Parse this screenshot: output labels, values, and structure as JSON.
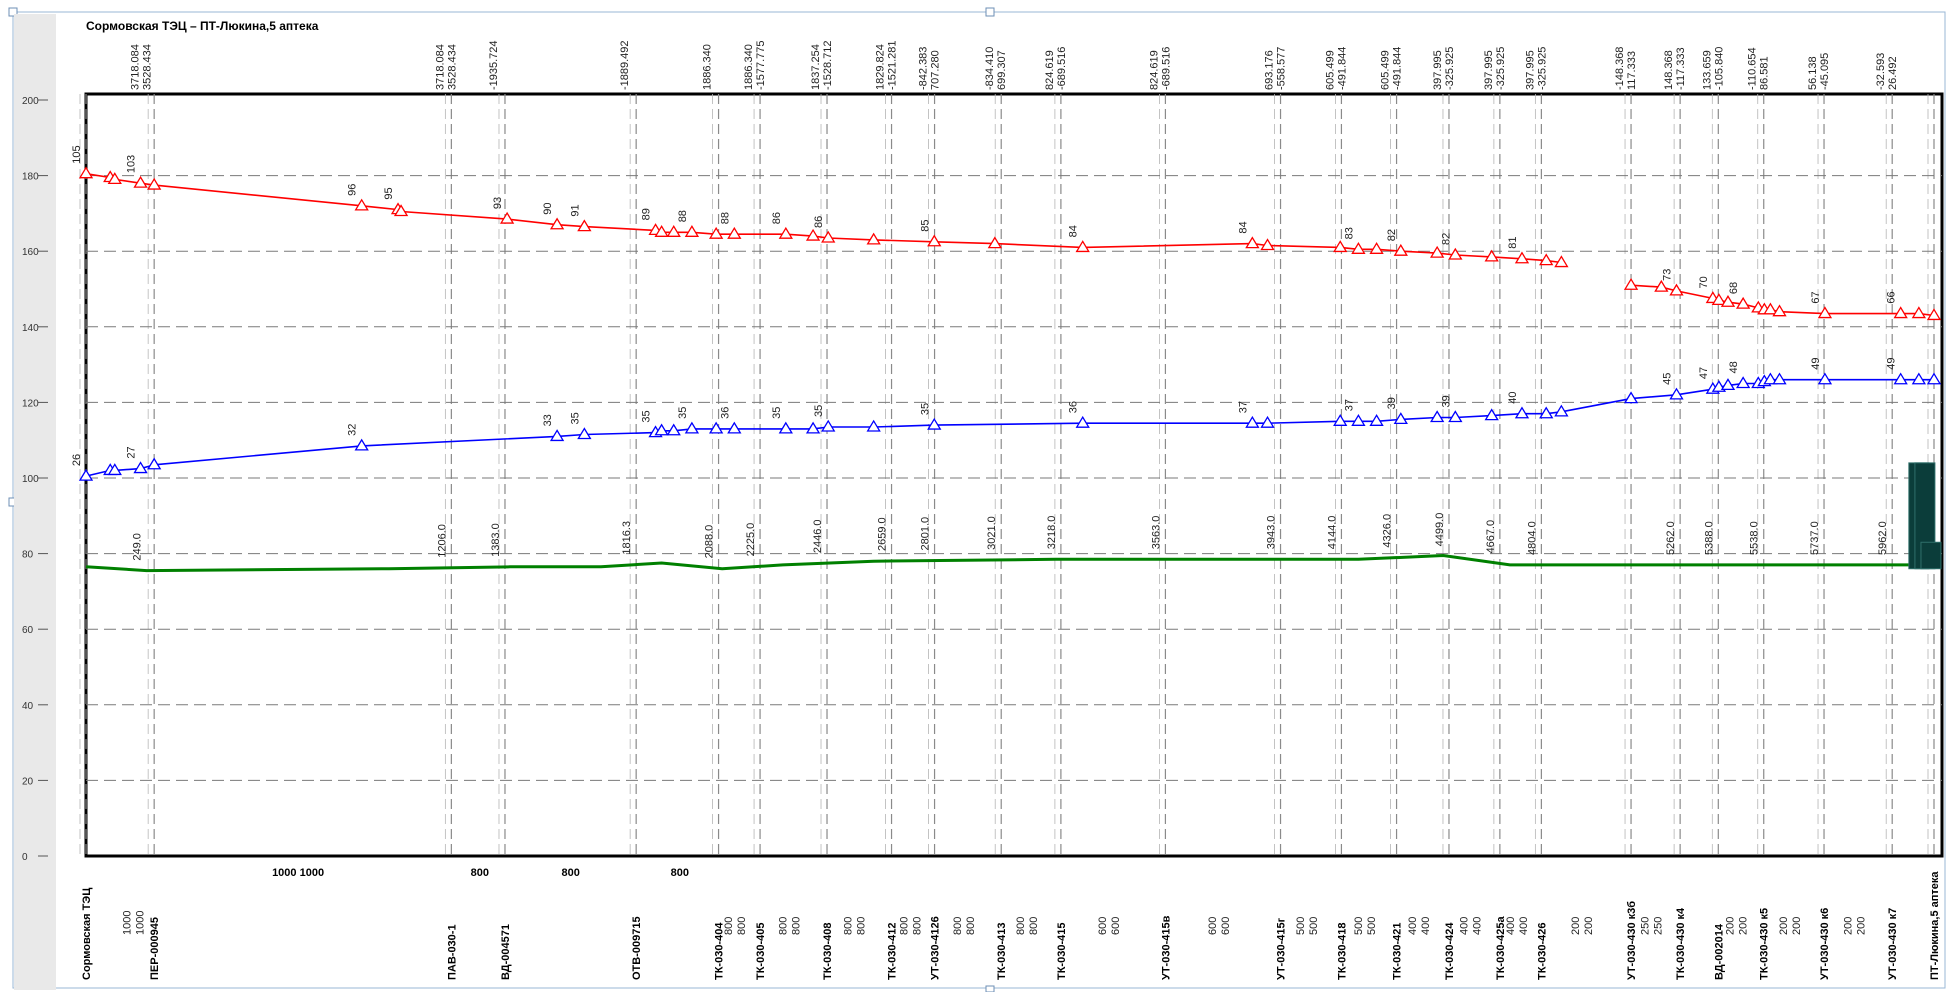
{
  "chart_data": {
    "type": "line",
    "title": "Сормовская ТЭЦ – ПТ-Люкина,5 аптека",
    "ylim": [
      0,
      200
    ],
    "y_ticks": [
      0,
      20,
      40,
      60,
      80,
      100,
      120,
      140,
      160,
      180,
      200
    ],
    "colors": {
      "supply": "#ff0000",
      "return": "#0000ff",
      "ground": "#008000",
      "bars": "#0b3d3a",
      "grid": "#8a8a8a"
    },
    "series": [
      {
        "key": "supply",
        "points": [
          [
            0,
            180.5
          ],
          [
            80,
            179.5
          ],
          [
            95,
            179
          ],
          [
            180,
            178
          ],
          [
            225,
            177.5
          ],
          [
            910,
            172
          ],
          [
            1030,
            171
          ],
          [
            1040,
            170.5
          ],
          [
            1390,
            168.5
          ],
          [
            1555,
            167
          ],
          [
            1645,
            166.5
          ],
          [
            1880,
            165.5
          ],
          [
            1900,
            165
          ],
          [
            1940,
            165
          ],
          [
            2000,
            165
          ],
          [
            2080,
            164.5
          ],
          [
            2140,
            164.5
          ],
          [
            2310,
            164.5
          ],
          [
            2400,
            164
          ],
          [
            2450,
            163.5
          ],
          [
            2600,
            163
          ],
          [
            2800,
            162.5
          ],
          [
            3000,
            162
          ],
          [
            3290,
            161
          ],
          [
            3850,
            162
          ],
          [
            3900,
            161.5
          ],
          [
            4140,
            161
          ],
          [
            4200,
            160.5
          ],
          [
            4260,
            160.5
          ],
          [
            4340,
            160
          ],
          [
            4460,
            159.5
          ],
          [
            4520,
            159
          ],
          [
            4640,
            158.5
          ],
          [
            4740,
            158
          ],
          [
            4820,
            157.5
          ],
          [
            4870,
            157
          ]
        ],
        "point_labels": [
          [
            "105",
            0
          ],
          [
            "103",
            180
          ],
          [
            "96",
            910
          ],
          [
            "95",
            1030
          ],
          [
            "93",
            1390
          ],
          [
            "90",
            1555
          ],
          [
            "91",
            1645
          ],
          [
            "89",
            1880
          ],
          [
            "88",
            2000
          ],
          [
            "88",
            2140
          ],
          [
            "86",
            2310
          ],
          [
            "86",
            2450
          ],
          [
            "85",
            2800
          ],
          [
            "84",
            3290
          ],
          [
            "84",
            3850
          ],
          [
            "83",
            4200
          ],
          [
            "82",
            4340
          ],
          [
            "82",
            4520
          ],
          [
            "81",
            4740
          ]
        ]
      },
      {
        "key": "supply",
        "points": [
          [
            5100,
            151
          ],
          [
            5200,
            150.5
          ],
          [
            5250,
            149.5
          ],
          [
            5370,
            147.5
          ],
          [
            5390,
            147
          ],
          [
            5420,
            146.5
          ],
          [
            5470,
            146
          ],
          [
            5520,
            145
          ],
          [
            5540,
            144.5
          ],
          [
            5560,
            144.5
          ],
          [
            5590,
            144
          ],
          [
            5740,
            143.5
          ],
          [
            5990,
            143.5
          ],
          [
            6050,
            143.5
          ],
          [
            6100,
            143
          ]
        ],
        "point_labels": [
          [
            "73",
            5250
          ],
          [
            "70",
            5370
          ],
          [
            "68",
            5470
          ],
          [
            "67",
            5740
          ],
          [
            "66",
            5990
          ]
        ]
      },
      {
        "key": "return",
        "points": [
          [
            0,
            100.5
          ],
          [
            80,
            102
          ],
          [
            95,
            102
          ],
          [
            180,
            102.5
          ],
          [
            225,
            103.5
          ],
          [
            910,
            108.5
          ],
          [
            1555,
            111
          ],
          [
            1645,
            111.5
          ],
          [
            1880,
            112
          ],
          [
            1900,
            112.5
          ],
          [
            1940,
            112.5
          ],
          [
            2000,
            113
          ],
          [
            2080,
            113
          ],
          [
            2140,
            113
          ],
          [
            2310,
            113
          ],
          [
            2400,
            113
          ],
          [
            2450,
            113.5
          ],
          [
            2600,
            113.5
          ],
          [
            2800,
            114
          ],
          [
            3290,
            114.5
          ],
          [
            3850,
            114.5
          ],
          [
            3900,
            114.5
          ],
          [
            4140,
            115
          ],
          [
            4200,
            115
          ],
          [
            4260,
            115
          ],
          [
            4340,
            115.5
          ],
          [
            4460,
            116
          ],
          [
            4520,
            116
          ],
          [
            4640,
            116.5
          ],
          [
            4740,
            117
          ],
          [
            4820,
            117
          ],
          [
            4870,
            117.5
          ],
          [
            5100,
            121
          ],
          [
            5250,
            122
          ],
          [
            5370,
            123.5
          ],
          [
            5390,
            124
          ],
          [
            5420,
            124.5
          ],
          [
            5470,
            125
          ],
          [
            5520,
            125
          ],
          [
            5540,
            125.5
          ],
          [
            5560,
            126
          ],
          [
            5590,
            126
          ],
          [
            5740,
            126
          ],
          [
            5990,
            126
          ],
          [
            6050,
            126
          ],
          [
            6100,
            126
          ]
        ],
        "point_labels": [
          [
            "26",
            0
          ],
          [
            "27",
            180
          ],
          [
            "32",
            910
          ],
          [
            "33",
            1555
          ],
          [
            "35",
            1645
          ],
          [
            "35",
            1880
          ],
          [
            "35",
            2000
          ],
          [
            "36",
            2140
          ],
          [
            "35",
            2310
          ],
          [
            "35",
            2450
          ],
          [
            "35",
            2800
          ],
          [
            "36",
            3290
          ],
          [
            "37",
            3850
          ],
          [
            "37",
            4200
          ],
          [
            "39",
            4340
          ],
          [
            "39",
            4520
          ],
          [
            "40",
            4740
          ],
          [
            "45",
            5250
          ],
          [
            "47",
            5370
          ],
          [
            "48",
            5470
          ],
          [
            "49",
            5740
          ],
          [
            "49",
            5990
          ]
        ]
      },
      {
        "key": "ground",
        "points": [
          [
            0,
            76.5
          ],
          [
            200,
            75.5
          ],
          [
            1000,
            76
          ],
          [
            1400,
            76.5
          ],
          [
            1700,
            76.5
          ],
          [
            1900,
            77.5
          ],
          [
            2100,
            76
          ],
          [
            2300,
            77
          ],
          [
            2600,
            78
          ],
          [
            3200,
            78.5
          ],
          [
            4200,
            78.5
          ],
          [
            4480,
            79.5
          ],
          [
            4700,
            77
          ],
          [
            5200,
            77
          ],
          [
            5500,
            77
          ],
          [
            6100,
            77
          ]
        ],
        "point_labels": [
          [
            "249.0",
            200
          ],
          [
            "1206.0",
            1206
          ],
          [
            "1383.0",
            1383
          ],
          [
            "1816.3",
            1816
          ],
          [
            "2088.0",
            2088
          ],
          [
            "2225.0",
            2225
          ],
          [
            "2446.0",
            2446
          ],
          [
            "2659.0",
            2659
          ],
          [
            "2801.0",
            2801
          ],
          [
            "3021.0",
            3021
          ],
          [
            "3218.0",
            3218
          ],
          [
            "3563.0",
            3563
          ],
          [
            "3943.0",
            3943
          ],
          [
            "4144.0",
            4144
          ],
          [
            "4326.0",
            4326
          ],
          [
            "4499.0",
            4499
          ],
          [
            "4667.0",
            4667
          ],
          [
            "4804.0",
            4804
          ],
          [
            "5262.0",
            5262
          ],
          [
            "5388.0",
            5388
          ],
          [
            "5538.0",
            5538
          ],
          [
            "5737.0",
            5737
          ],
          [
            "5962.0",
            5962
          ]
        ]
      }
    ],
    "piezo_top": [
      [
        "3718.084\n3528.434",
        200
      ],
      [
        "3718.084\n3528.434",
        1206
      ],
      [
        "-1935.724",
        1383
      ],
      [
        "-1889.492",
        1816
      ],
      [
        "1886.340",
        2088
      ],
      [
        "1886.340\n-1577.775",
        2225
      ],
      [
        "1837.254\n-1528.712",
        2446
      ],
      [
        "1829.824\n-1521.281",
        2659
      ],
      [
        "-842.383\n707.280",
        2801
      ],
      [
        "-834.410\n699.307",
        3021
      ],
      [
        "824.619\n-689.516",
        3218
      ],
      [
        "824.619\n-689.516",
        3563
      ],
      [
        "693.176\n-558.577",
        3943
      ],
      [
        "605.499\n-491.844",
        4144
      ],
      [
        "605.499\n-491.844",
        4326
      ],
      [
        "397.995\n-325.925",
        4499
      ],
      [
        "397.995\n-325.925",
        4667
      ],
      [
        "397.995\n-325.925",
        4804
      ],
      [
        "-148.368\n117.333",
        5100
      ],
      [
        "148.368\n-117.333",
        5262
      ],
      [
        "133.659\n-105.840",
        5388
      ],
      [
        "-110.654\n86.581",
        5538
      ],
      [
        "56.138\n-45.095",
        5737
      ],
      [
        "-32.593\n26.492",
        5962
      ]
    ],
    "nodes": [
      [
        "Сормовская ТЭЦ",
        0
      ],
      [
        "ПЕР-000945",
        225
      ],
      [
        "ПАВ-030-1",
        1206
      ],
      [
        "ВД-004571",
        1383
      ],
      [
        "ОТВ-009715",
        1816
      ],
      [
        "ТК-030-404",
        2088
      ],
      [
        "ТК-030-405",
        2225
      ],
      [
        "ТК-030-408",
        2446
      ],
      [
        "ТК-030-412",
        2659
      ],
      [
        "УТ-030-4126",
        2801
      ],
      [
        "ТК-030-413",
        3021
      ],
      [
        "ТК-030-415",
        3218
      ],
      [
        "УТ-030-415в",
        3563
      ],
      [
        "УТ-030-415г",
        3943
      ],
      [
        "ТК-030-418",
        4144
      ],
      [
        "ТК-030-421",
        4326
      ],
      [
        "ТК-030-424",
        4499
      ],
      [
        "ТК-030-425а",
        4667
      ],
      [
        "ТК-030-426",
        4804
      ],
      [
        "УТ-030-430 к3б",
        5100
      ],
      [
        "ТК-030-430 к4",
        5262
      ],
      [
        "ВД-002014",
        5388
      ],
      [
        "ТК-030-430 к5",
        5538
      ],
      [
        "УТ-030-430 к6",
        5737
      ],
      [
        "УТ-030-430 к7",
        5962
      ],
      [
        "ПТ-Люкина,5 аптека",
        6100
      ]
    ],
    "diameters": [
      [
        "1000 1000",
        170
      ],
      [
        "1000 1000",
        700
      ],
      [
        "800",
        1300
      ],
      [
        "800",
        1600
      ],
      [
        "800",
        1960
      ],
      [
        "800 800",
        2155
      ],
      [
        "800 800",
        2336
      ],
      [
        "800 800",
        2550
      ],
      [
        "800 800",
        2735
      ],
      [
        "800 800",
        2911
      ],
      [
        "800 800",
        3120
      ],
      [
        "600 600",
        3390
      ],
      [
        "600 600",
        3753
      ],
      [
        "500 500",
        4044
      ],
      [
        "500 500",
        4235
      ],
      [
        "400 400",
        4413
      ],
      [
        "400 400",
        4583
      ],
      [
        "400 400",
        4736
      ],
      [
        "200 200",
        4952
      ],
      [
        "250 250",
        5181
      ],
      [
        "200 200",
        5462
      ],
      [
        "200 200",
        5638
      ],
      [
        "200 200",
        5850
      ]
    ],
    "bars": [
      [
        6050,
        104
      ],
      [
        6070,
        104
      ],
      [
        6090,
        83
      ]
    ]
  }
}
